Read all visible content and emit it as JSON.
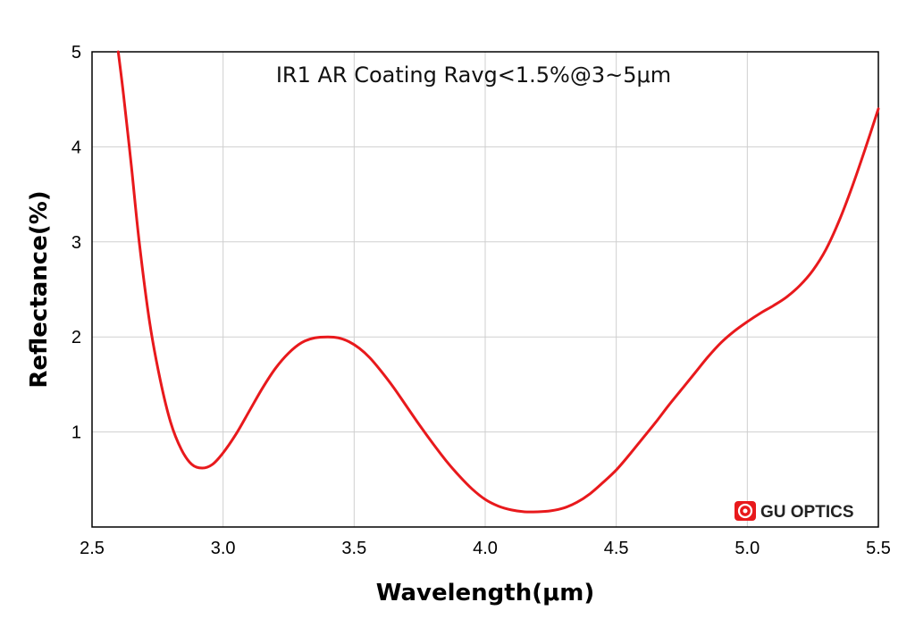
{
  "chart_data": {
    "type": "line",
    "title": "",
    "annotation": "IR1 AR Coating Ravg<1.5%@3~5μm",
    "xlabel": "Wavelength(μm)",
    "ylabel": "Reflectance(%)",
    "xlim": [
      2.5,
      5.5
    ],
    "ylim": [
      0,
      5
    ],
    "xticks": [
      "2.5",
      "3.0",
      "3.5",
      "4.0",
      "4.5",
      "5.0",
      "5.5"
    ],
    "yticks": [
      "1",
      "2",
      "3",
      "4",
      "5"
    ],
    "grid": true,
    "series": [
      {
        "color": "#e8191c",
        "x": [
          2.6,
          2.62,
          2.65,
          2.68,
          2.72,
          2.76,
          2.8,
          2.84,
          2.88,
          2.92,
          2.96,
          3.0,
          3.05,
          3.1,
          3.15,
          3.2,
          3.25,
          3.3,
          3.35,
          3.4,
          3.44,
          3.48,
          3.52,
          3.56,
          3.6,
          3.65,
          3.7,
          3.75,
          3.8,
          3.85,
          3.9,
          3.95,
          4.0,
          4.05,
          4.1,
          4.15,
          4.2,
          4.25,
          4.3,
          4.35,
          4.4,
          4.45,
          4.5,
          4.55,
          4.6,
          4.65,
          4.7,
          4.75,
          4.8,
          4.85,
          4.9,
          4.95,
          5.0,
          5.05,
          5.1,
          5.15,
          5.2,
          5.25,
          5.3,
          5.35,
          5.4,
          5.45,
          5.5
        ],
        "y": [
          5.0,
          4.55,
          3.8,
          3.0,
          2.15,
          1.55,
          1.1,
          0.82,
          0.66,
          0.62,
          0.66,
          0.78,
          0.98,
          1.22,
          1.46,
          1.67,
          1.83,
          1.94,
          1.99,
          2.0,
          1.99,
          1.95,
          1.88,
          1.78,
          1.65,
          1.47,
          1.27,
          1.07,
          0.88,
          0.7,
          0.54,
          0.4,
          0.29,
          0.22,
          0.18,
          0.16,
          0.16,
          0.17,
          0.2,
          0.26,
          0.35,
          0.47,
          0.6,
          0.76,
          0.93,
          1.1,
          1.28,
          1.45,
          1.62,
          1.79,
          1.94,
          2.06,
          2.16,
          2.25,
          2.33,
          2.42,
          2.54,
          2.7,
          2.92,
          3.22,
          3.58,
          3.98,
          4.4
        ]
      }
    ]
  },
  "logo": {
    "text": "GU OPTICS",
    "icon": "gu-optics-logo-icon",
    "color": "#e8191c"
  }
}
